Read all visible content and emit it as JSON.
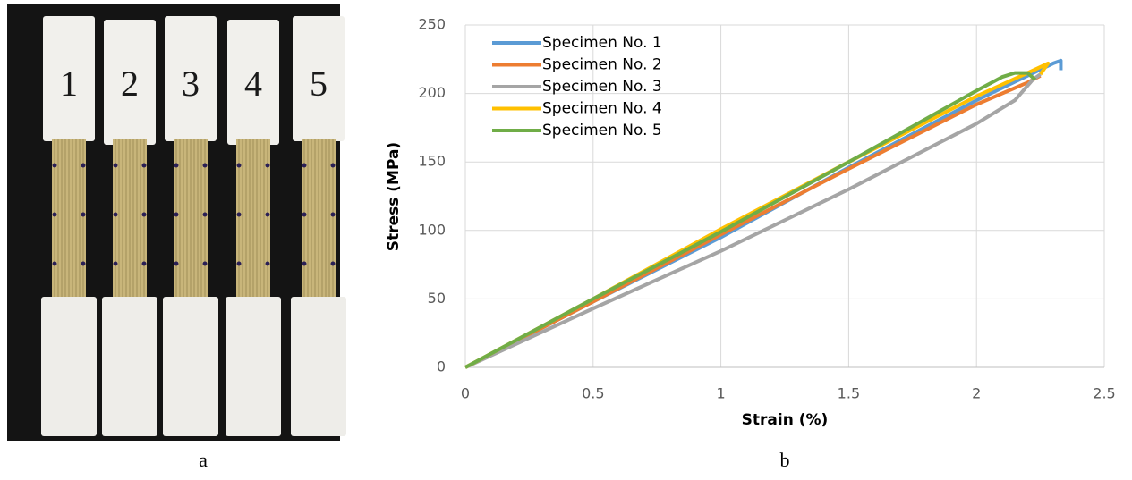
{
  "photo": {
    "specimen_labels": [
      "1",
      "2",
      "3",
      "4",
      "5"
    ],
    "caption": "a"
  },
  "chart_data": {
    "type": "line",
    "caption": "b",
    "x_label": "Strain (%)",
    "y_label": "Stress (MPa)",
    "xlim": [
      0,
      2.5
    ],
    "ylim": [
      0,
      250
    ],
    "xticks": [
      0,
      0.5,
      1,
      1.5,
      2,
      2.5
    ],
    "yticks": [
      0,
      50,
      100,
      150,
      200,
      250
    ],
    "grid": true,
    "legend": "upper-left",
    "series": [
      {
        "name": "Specimen No. 1",
        "color": "#5b9bd5",
        "x": [
          0,
          0.5,
          1,
          1.5,
          2,
          2.2,
          2.3,
          2.33,
          2.33
        ],
        "values": [
          0,
          48,
          95,
          146,
          195,
          213,
          222,
          224,
          217
        ]
      },
      {
        "name": "Specimen No. 2",
        "color": "#ed7d31",
        "x": [
          0,
          0.5,
          1,
          1.5,
          2,
          2.2,
          2.25
        ],
        "values": [
          0,
          48,
          97,
          145,
          192,
          208,
          213
        ]
      },
      {
        "name": "Specimen No. 3",
        "color": "#a5a5a5",
        "x": [
          0,
          0.5,
          1,
          1.5,
          2,
          2.15,
          2.22,
          2.25
        ],
        "values": [
          0,
          43,
          85,
          130,
          178,
          195,
          210,
          214
        ]
      },
      {
        "name": "Specimen No. 4",
        "color": "#ffc000",
        "x": [
          0,
          0.5,
          1,
          1.5,
          2,
          2.2,
          2.28,
          2.25
        ],
        "values": [
          0,
          50,
          101,
          150,
          198,
          215,
          222,
          214
        ]
      },
      {
        "name": "Specimen No. 5",
        "color": "#70ad47",
        "x": [
          0,
          0.5,
          1,
          1.5,
          2,
          2.1,
          2.15,
          2.2,
          2.23
        ],
        "values": [
          0,
          50,
          99,
          150,
          202,
          212,
          215,
          215,
          210
        ]
      }
    ]
  }
}
